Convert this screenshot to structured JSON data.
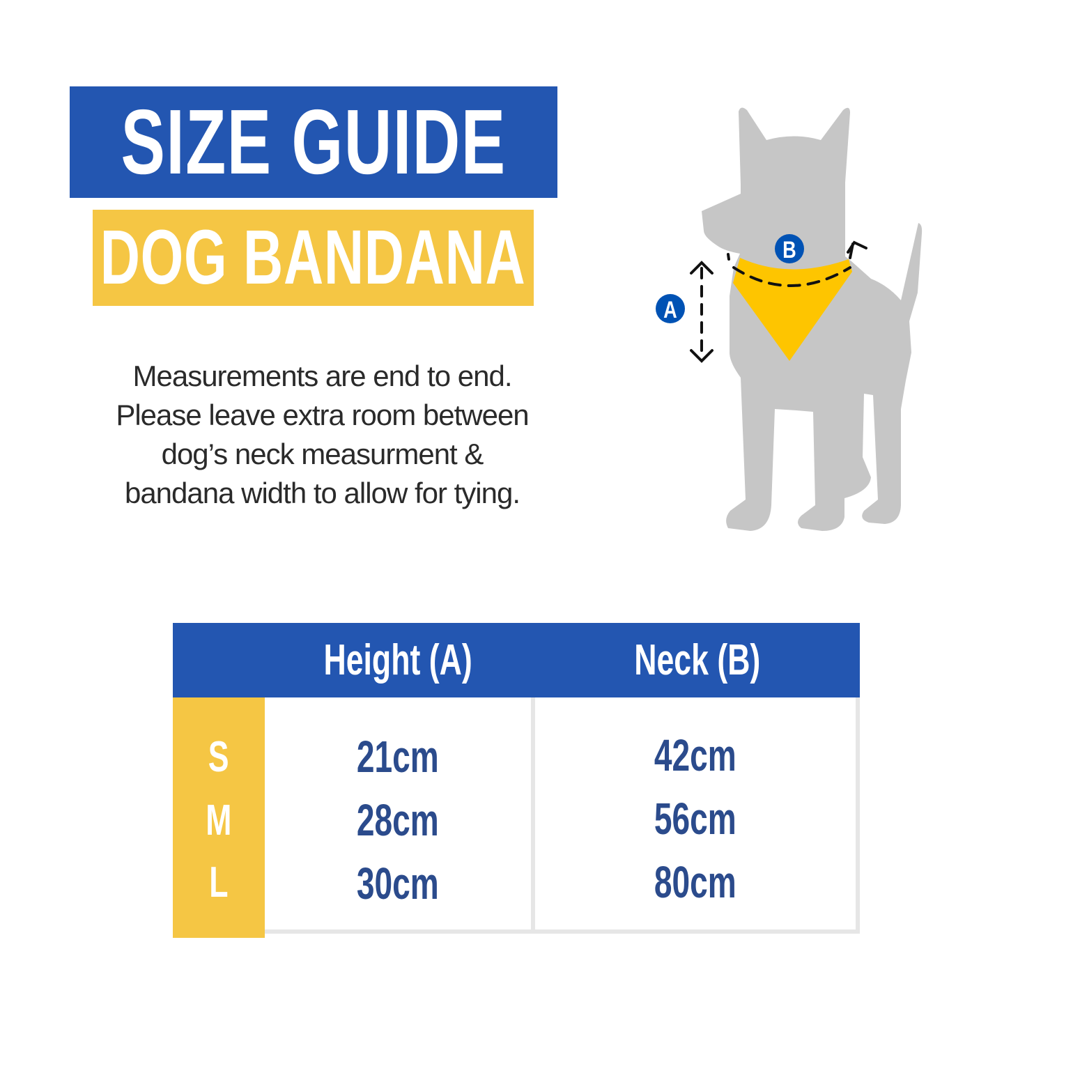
{
  "header": {
    "title": "SIZE GUIDE",
    "subtitle": "DOG BANDANA"
  },
  "description": {
    "lines": [
      "Measurements are end to end.",
      "Please leave extra room between",
      "dog’s neck measurment &",
      "bandana width to allow for tying."
    ]
  },
  "illustration": {
    "label_a": "A",
    "label_b": "B",
    "icons": [
      "dog-silhouette",
      "bandana",
      "height-arrow",
      "neck-arrow"
    ]
  },
  "table": {
    "headers": [
      "Height (A)",
      "Neck (B)"
    ],
    "rows": [
      {
        "size": "S",
        "height": "21cm",
        "neck": "42cm"
      },
      {
        "size": "M",
        "height": "28cm",
        "neck": "56cm"
      },
      {
        "size": "L",
        "height": "30cm",
        "neck": "80cm"
      }
    ]
  },
  "colors": {
    "blue": "#2356b1",
    "yellow": "#f5c644",
    "bandana": "#fec500",
    "dog": "#c6c6c6",
    "value_text": "#2b4b8c",
    "badge": "#0052b4"
  }
}
